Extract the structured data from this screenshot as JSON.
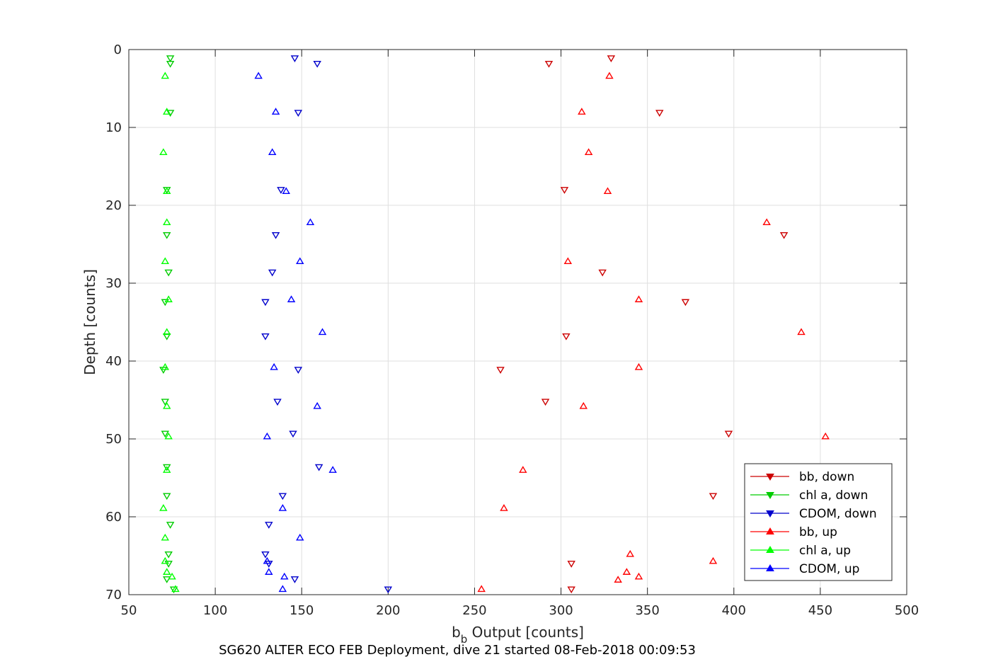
{
  "chart_data": {
    "type": "scatter",
    "title": "SG620 ALTER ECO FEB Deployment, dive 21 started 08-Feb-2018 00:09:53",
    "xlabel_main": "b",
    "xlabel_sub": "b",
    "xlabel_rest": " Output [counts]",
    "ylabel": "Depth [counts]",
    "xlim": [
      50,
      500
    ],
    "ylim": [
      0,
      70
    ],
    "y_reversed": true,
    "grid": true,
    "legend_position": "bottom-right",
    "x_ticks": [
      50,
      100,
      150,
      200,
      250,
      300,
      350,
      400,
      450,
      500
    ],
    "y_ticks": [
      0,
      10,
      20,
      30,
      40,
      50,
      60,
      70
    ],
    "series": [
      {
        "name": "bb, down",
        "color": "#cc0000",
        "marker": "triangle-down",
        "points": [
          [
            329,
            1.1
          ],
          [
            293,
            1.8
          ],
          [
            357,
            8.1
          ],
          [
            302,
            18.0
          ],
          [
            429,
            23.8
          ],
          [
            324,
            28.6
          ],
          [
            372,
            32.4
          ],
          [
            303,
            36.8
          ],
          [
            265,
            41.1
          ],
          [
            291,
            45.2
          ],
          [
            397,
            49.3
          ],
          [
            388,
            57.3
          ],
          [
            306,
            66.0
          ],
          [
            306,
            69.3
          ]
        ]
      },
      {
        "name": "chl a, down",
        "color": "#00cc00",
        "marker": "triangle-down",
        "points": [
          [
            74,
            1.1
          ],
          [
            74,
            1.8
          ],
          [
            74,
            8.1
          ],
          [
            72,
            18.0
          ],
          [
            72,
            23.8
          ],
          [
            73,
            28.6
          ],
          [
            71,
            32.4
          ],
          [
            72,
            36.8
          ],
          [
            70,
            41.1
          ],
          [
            71,
            45.2
          ],
          [
            71,
            49.3
          ],
          [
            72,
            53.6
          ],
          [
            72,
            57.3
          ],
          [
            74,
            61.0
          ],
          [
            73,
            64.8
          ],
          [
            73,
            66.0
          ],
          [
            72,
            68.0
          ],
          [
            76,
            69.3
          ]
        ]
      },
      {
        "name": "CDOM, down",
        "color": "#0000cc",
        "marker": "triangle-down",
        "points": [
          [
            146,
            1.1
          ],
          [
            159,
            1.8
          ],
          [
            148,
            8.1
          ],
          [
            138,
            18.0
          ],
          [
            135,
            23.8
          ],
          [
            133,
            28.6
          ],
          [
            129,
            32.4
          ],
          [
            129,
            36.8
          ],
          [
            148,
            41.1
          ],
          [
            136,
            45.2
          ],
          [
            145,
            49.3
          ],
          [
            160,
            53.6
          ],
          [
            139,
            57.3
          ],
          [
            131,
            61.0
          ],
          [
            129,
            64.8
          ],
          [
            131,
            66.0
          ],
          [
            146,
            68.0
          ],
          [
            200,
            69.3
          ]
        ]
      },
      {
        "name": "bb, up",
        "color": "#ff0000",
        "marker": "triangle-up",
        "points": [
          [
            328,
            3.4
          ],
          [
            312,
            8.0
          ],
          [
            316,
            13.2
          ],
          [
            327,
            18.2
          ],
          [
            419,
            22.2
          ],
          [
            304,
            27.2
          ],
          [
            345,
            32.1
          ],
          [
            439,
            36.3
          ],
          [
            345,
            40.8
          ],
          [
            313,
            45.8
          ],
          [
            453,
            49.7
          ],
          [
            278,
            54.0
          ],
          [
            267,
            58.9
          ],
          [
            340,
            64.8
          ],
          [
            388,
            65.7
          ],
          [
            338,
            67.1
          ],
          [
            345,
            67.7
          ],
          [
            333,
            68.1
          ],
          [
            254,
            69.3
          ]
        ]
      },
      {
        "name": "chl a, up",
        "color": "#00ff00",
        "marker": "triangle-up",
        "points": [
          [
            71,
            3.4
          ],
          [
            72,
            8.0
          ],
          [
            70,
            13.2
          ],
          [
            72,
            18.2
          ],
          [
            72,
            22.2
          ],
          [
            71,
            27.2
          ],
          [
            73,
            32.1
          ],
          [
            72,
            36.3
          ],
          [
            71,
            40.8
          ],
          [
            72,
            45.8
          ],
          [
            73,
            49.7
          ],
          [
            72,
            54.0
          ],
          [
            70,
            58.9
          ],
          [
            71,
            62.7
          ],
          [
            71,
            65.7
          ],
          [
            72,
            67.1
          ],
          [
            75,
            67.7
          ],
          [
            77,
            69.3
          ]
        ]
      },
      {
        "name": "CDOM, up",
        "color": "#0000ff",
        "marker": "triangle-up",
        "points": [
          [
            125,
            3.4
          ],
          [
            135,
            8.0
          ],
          [
            133,
            13.2
          ],
          [
            141,
            18.2
          ],
          [
            155,
            22.2
          ],
          [
            149,
            27.2
          ],
          [
            144,
            32.1
          ],
          [
            162,
            36.3
          ],
          [
            134,
            40.8
          ],
          [
            159,
            45.8
          ],
          [
            130,
            49.7
          ],
          [
            168,
            54.0
          ],
          [
            139,
            58.9
          ],
          [
            149,
            62.7
          ],
          [
            130,
            65.7
          ],
          [
            131,
            67.1
          ],
          [
            140,
            67.7
          ],
          [
            139,
            69.3
          ]
        ]
      }
    ]
  }
}
